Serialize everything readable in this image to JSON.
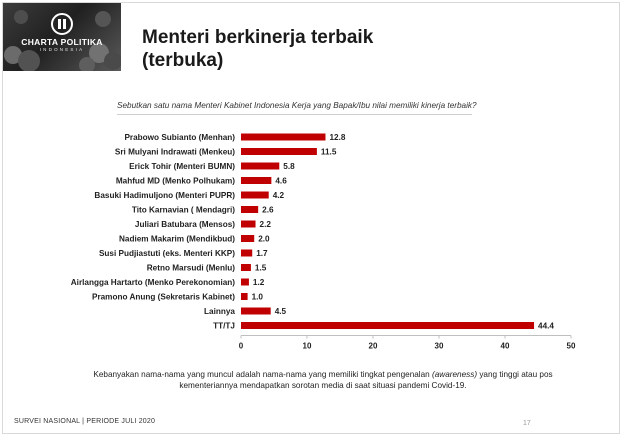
{
  "logo": {
    "name": "CHARTA POLITIKA",
    "sub": "INDONESIA",
    "icon": "charta-politika-logo-icon"
  },
  "header": {
    "title_line1": "Menteri berkinerja terbaik",
    "title_line2": "(terbuka)"
  },
  "question": "Sebutkan satu nama Menteri Kabinet Indonesia Kerja yang Bapak/Ibu nilai memiliki kinerja terbaik?",
  "note": {
    "before": "Kebanyakan nama-nama yang muncul adalah nama-nama yang memiliki tingkat pengenalan ",
    "emphasis": "(awareness)",
    "after": " yang tinggi atau pos kementeriannya mendapatkan sorotan media di saat situasi pandemi Covid-19."
  },
  "footer": "SURVEI NASIONAL | PERIODE JULI 2020",
  "page_number": "17",
  "chart_data": {
    "type": "bar",
    "orientation": "horizontal",
    "bar_color": "#c00000",
    "categories": [
      "Prabowo Subianto (Menhan)",
      "Sri Mulyani Indrawati (Menkeu)",
      "Erick Tohir (Menteri BUMN)",
      "Mahfud MD (Menko Polhukam)",
      "Basuki Hadimuljono (Menteri PUPR)",
      "Tito Karnavian ( Mendagri)",
      "Juliari Batubara (Mensos)",
      "Nadiem Makarim (Mendikbud)",
      "Susi Pudjiastuti (eks. Menteri KKP)",
      "Retno Marsudi (Menlu)",
      "Airlangga Hartarto (Menko Perekonomian)",
      "Pramono Anung (Sekretaris Kabinet)",
      "Lainnya",
      "TT/TJ"
    ],
    "values": [
      12.8,
      11.5,
      5.8,
      4.6,
      4.2,
      2.6,
      2.2,
      2.0,
      1.7,
      1.5,
      1.2,
      1.0,
      4.5,
      44.4
    ],
    "value_labels": [
      "12.8",
      "11.5",
      "5.8",
      "4.6",
      "4.2",
      "2.6",
      "2.2",
      "2.0",
      "1.7",
      "1.5",
      "1.2",
      "1.0",
      "4.5",
      "44.4"
    ],
    "xlim": [
      0,
      50
    ],
    "xticks": [
      "0",
      "10",
      "20",
      "30",
      "40",
      "50"
    ],
    "title": "",
    "xlabel": "",
    "ylabel": "",
    "grid": false,
    "legend": "none"
  }
}
